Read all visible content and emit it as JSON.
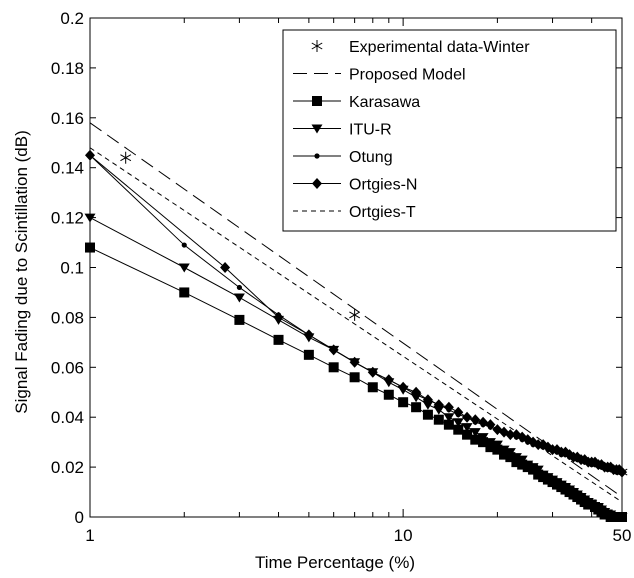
{
  "chart_data": {
    "type": "line",
    "title": "",
    "xlabel": "Time Percentage (%)",
    "ylabel": "Signal Fading due to Scintillation (dB)",
    "xscale": "log",
    "xlim": [
      1,
      50
    ],
    "ylim": [
      0,
      0.2
    ],
    "x_tick_labels": [
      "1",
      "10",
      "50"
    ],
    "y_tick_labels": [
      "0",
      "0.02",
      "0.04",
      "0.06",
      "0.08",
      "0.1",
      "0.12",
      "0.14",
      "0.16",
      "0.18",
      "0.2"
    ],
    "grid": false,
    "legend_position": "top-right",
    "series": [
      {
        "name": "Experimental data-Winter",
        "style": "asterisk-markers",
        "x": [
          1.3,
          7,
          50
        ],
        "y": [
          0.144,
          0.081,
          0.018
        ]
      },
      {
        "name": "Proposed Model",
        "style": "long-dash",
        "x": [
          1,
          50
        ],
        "y": [
          0.158,
          0.008
        ]
      },
      {
        "name": "Karasawa",
        "style": "solid-square-markers",
        "x": [
          1,
          2,
          3,
          4,
          5,
          6,
          7,
          8,
          9,
          10,
          11,
          12,
          13,
          14,
          15,
          16,
          17,
          18,
          19,
          20,
          21,
          22,
          23,
          24,
          25,
          26,
          27,
          28,
          29,
          30,
          31,
          32,
          33,
          34,
          35,
          36,
          37,
          38,
          39,
          40,
          41,
          42,
          43,
          44,
          45,
          46,
          47,
          48,
          49,
          50
        ],
        "y": [
          0.108,
          0.09,
          0.079,
          0.071,
          0.065,
          0.06,
          0.056,
          0.052,
          0.049,
          0.046,
          0.044,
          0.041,
          0.039,
          0.037,
          0.035,
          0.033,
          0.031,
          0.03,
          0.028,
          0.027,
          0.025,
          0.024,
          0.022,
          0.021,
          0.02,
          0.019,
          0.017,
          0.016,
          0.015,
          0.014,
          0.013,
          0.012,
          0.011,
          0.01,
          0.009,
          0.008,
          0.007,
          0.006,
          0.005,
          0.005,
          0.004,
          0.003,
          0.002,
          0.001,
          0.001,
          0.0,
          0.0,
          0.0,
          0.0,
          0.0
        ]
      },
      {
        "name": "ITU-R",
        "style": "solid-triangle-markers",
        "x": [
          1,
          2,
          3,
          4,
          5,
          6,
          7,
          8,
          9,
          10,
          11,
          12,
          13,
          14,
          15,
          16,
          17,
          18,
          19,
          20,
          21,
          22,
          23,
          24,
          25,
          26,
          27,
          28,
          29,
          30,
          31,
          32,
          33,
          34,
          35,
          36,
          37,
          38,
          39,
          40,
          41,
          42,
          43,
          44,
          45,
          46,
          47,
          48,
          49,
          50
        ],
        "y": [
          0.12,
          0.1,
          0.088,
          0.079,
          0.072,
          0.067,
          0.062,
          0.058,
          0.054,
          0.051,
          0.048,
          0.045,
          0.043,
          0.04,
          0.038,
          0.036,
          0.034,
          0.032,
          0.03,
          0.029,
          0.027,
          0.026,
          0.024,
          0.023,
          0.021,
          0.02,
          0.019,
          0.017,
          0.016,
          0.015,
          0.014,
          0.013,
          0.012,
          0.011,
          0.01,
          0.009,
          0.008,
          0.007,
          0.006,
          0.005,
          0.004,
          0.004,
          0.003,
          0.002,
          0.001,
          0.001,
          0.0,
          0.0,
          0.0,
          0.0
        ]
      },
      {
        "name": "Otung",
        "style": "solid-dot-markers",
        "x": [
          1,
          2,
          3,
          4,
          5,
          6,
          7,
          8,
          9,
          10,
          11,
          12,
          13,
          14,
          15,
          16,
          17,
          18,
          19,
          20,
          21,
          22,
          23,
          24,
          25,
          26,
          27,
          28,
          29,
          30,
          31,
          32,
          33,
          34,
          35,
          36,
          37,
          38,
          39,
          40,
          41,
          42,
          43,
          44,
          45,
          46,
          47,
          48,
          49,
          50
        ],
        "y": [
          0.145,
          0.109,
          0.092,
          0.081,
          0.073,
          0.067,
          0.062,
          0.058,
          0.055,
          0.052,
          0.049,
          0.047,
          0.045,
          0.043,
          0.041,
          0.04,
          0.038,
          0.037,
          0.036,
          0.035,
          0.034,
          0.033,
          0.032,
          0.031,
          0.03,
          0.029,
          0.029,
          0.028,
          0.027,
          0.027,
          0.026,
          0.025,
          0.025,
          0.024,
          0.024,
          0.023,
          0.023,
          0.022,
          0.022,
          0.021,
          0.021,
          0.021,
          0.02,
          0.02,
          0.019,
          0.019,
          0.019,
          0.018,
          0.018,
          0.018
        ]
      },
      {
        "name": "Ortgies-N",
        "style": "solid-diamond-markers",
        "x": [
          1,
          2.7,
          4,
          5,
          6,
          7,
          8,
          9,
          10,
          11,
          12,
          13,
          14,
          15,
          16,
          17,
          18,
          19,
          20,
          21,
          22,
          23,
          24,
          25,
          26,
          27,
          28,
          29,
          30,
          31,
          32,
          33,
          34,
          35,
          36,
          37,
          38,
          39,
          40,
          41,
          42,
          43,
          44,
          45,
          46,
          47,
          48,
          49,
          50
        ],
        "y": [
          0.145,
          0.1,
          0.08,
          0.073,
          0.067,
          0.062,
          0.058,
          0.055,
          0.052,
          0.05,
          0.047,
          0.045,
          0.044,
          0.042,
          0.04,
          0.039,
          0.038,
          0.037,
          0.035,
          0.034,
          0.033,
          0.033,
          0.032,
          0.031,
          0.03,
          0.029,
          0.029,
          0.028,
          0.027,
          0.027,
          0.026,
          0.026,
          0.025,
          0.024,
          0.024,
          0.023,
          0.023,
          0.022,
          0.022,
          0.022,
          0.021,
          0.021,
          0.02,
          0.02,
          0.02,
          0.019,
          0.019,
          0.019,
          0.018
        ]
      },
      {
        "name": "Ortgies-T",
        "style": "short-dash",
        "x": [
          1,
          50
        ],
        "y": [
          0.148,
          0.006
        ]
      }
    ]
  }
}
